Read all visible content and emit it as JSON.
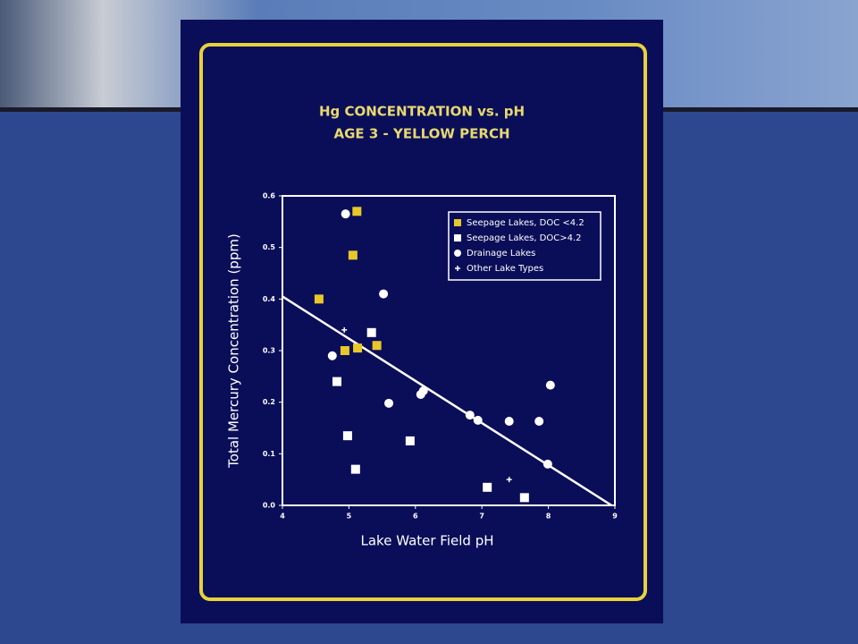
{
  "chart_data": {
    "type": "scatter",
    "title": "Hg CONCENTRATION vs. pH",
    "subtitle": "AGE 3 - YELLOW PERCH",
    "x_label": "Lake Water Field pH",
    "y_label": "Total Mercury Concentration (ppm)",
    "xlim": [
      4,
      9
    ],
    "ylim": [
      0,
      0.6
    ],
    "xticks": [
      4,
      5,
      6,
      7,
      8,
      9
    ],
    "yticks": [
      {
        "value": 0,
        "label": "0.0"
      },
      0.1,
      0.2,
      0.3,
      0.4,
      0.5,
      0.6
    ],
    "legend": "upper right",
    "series": [
      {
        "name": "Seepage Lakes, DOC <4.2",
        "color": "#e8c828",
        "marker": "square",
        "x": [
          4.55,
          4.94,
          5.06,
          5.12,
          5.13,
          5.42
        ],
        "values": [
          0.4,
          0.3,
          0.485,
          0.57,
          0.305,
          0.31
        ]
      },
      {
        "name": "Seepage Lakes, DOC>4.2",
        "color": "#ffffff",
        "marker": "square",
        "x": [
          4.82,
          4.98,
          5.1,
          5.34,
          5.92,
          7.08,
          7.64
        ],
        "values": [
          0.24,
          0.135,
          0.07,
          0.335,
          0.125,
          0.035,
          0.015
        ]
      },
      {
        "name": "Drainage Lakes",
        "color": "#ffffff",
        "marker": "circle",
        "x": [
          4.95,
          5.52,
          4.75,
          5.6,
          6.08,
          6.12,
          6.82,
          6.94,
          7.41,
          7.86,
          8.03,
          7.99
        ],
        "values": [
          0.565,
          0.41,
          0.29,
          0.198,
          0.215,
          0.222,
          0.175,
          0.165,
          0.163,
          0.163,
          0.233,
          0.08
        ]
      },
      {
        "name": "Other Lake Types",
        "color": "#ffffff",
        "marker": "plus",
        "x": [
          4.93,
          7.41
        ],
        "values": [
          0.34,
          0.05
        ]
      }
    ],
    "trendline": {
      "color": "#ffffff",
      "x": [
        4,
        8.95
      ],
      "y": [
        0.405,
        0
      ]
    }
  }
}
